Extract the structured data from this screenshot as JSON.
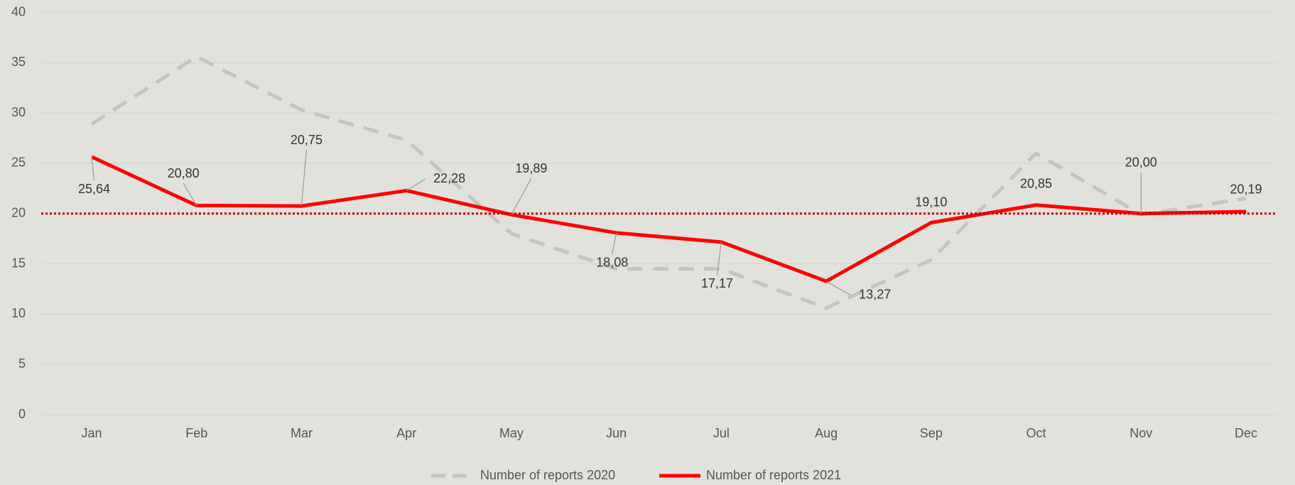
{
  "chart_data": {
    "type": "line",
    "categories": [
      "Jan",
      "Feb",
      "Mar",
      "Apr",
      "May",
      "Jun",
      "Jul",
      "Aug",
      "Sep",
      "Oct",
      "Nov",
      "Dec"
    ],
    "series": [
      {
        "name": "Number of reports 2020",
        "color": "#c4c4c0",
        "dashed": true,
        "values": [
          28.9,
          35.6,
          30.3,
          27.3,
          18.0,
          14.5,
          14.5,
          10.6,
          15.4,
          26.0,
          19.9,
          21.5
        ]
      },
      {
        "name": "Number of reports 2021",
        "color": "#ff0000",
        "dashed": false,
        "values": [
          25.64,
          20.8,
          20.75,
          22.28,
          19.89,
          18.08,
          17.17,
          13.27,
          19.1,
          20.85,
          20.0,
          20.19
        ],
        "value_labels": [
          "25,64",
          "20,80",
          "20,75",
          "22,28",
          "19,89",
          "18,08",
          "17,17",
          "13,27",
          "19,10",
          "20,85",
          "20,00",
          "20,19"
        ]
      }
    ],
    "reference_line": {
      "value": 20,
      "color": "#c00000"
    },
    "ylim": [
      0,
      40
    ],
    "yticks": [
      0,
      5,
      10,
      15,
      20,
      25,
      30,
      35,
      40
    ],
    "grid": true,
    "legend": "bottom"
  }
}
